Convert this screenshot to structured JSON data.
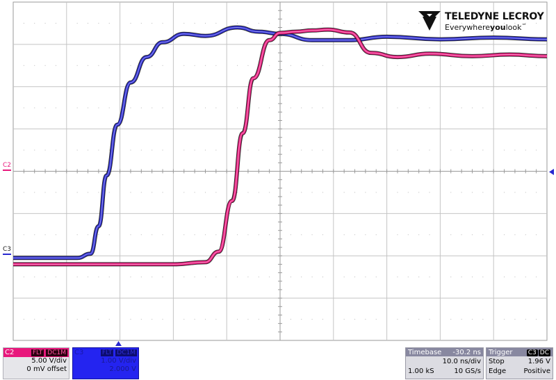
{
  "brand": {
    "name": "TELEDYNE LECROY",
    "tagline_pre": "Everywhere",
    "tagline_bold": "you",
    "tagline_post": "look",
    "tm": "™"
  },
  "markers": {
    "c2": "C2",
    "c3": "C3"
  },
  "channels": {
    "c2": {
      "name": "C2",
      "flt": "FLT",
      "coupling": "DC1M",
      "scale": "5.00 V/div",
      "offset": "0 mV offset",
      "color": "#e8177c",
      "offset_div": 0
    },
    "c3": {
      "name": "C3",
      "flt": "FLT",
      "coupling": "DC1M",
      "scale": "1.00 V/div",
      "offset": "2.000 V",
      "color": "#2828d0",
      "offset_div": -2
    }
  },
  "timebase": {
    "label": "Timebase",
    "delay": "-30.2 ns",
    "scale": "10.0 ns/div",
    "points": "1.00 kS",
    "rate": "10 GS/s"
  },
  "trigger": {
    "label": "Trigger",
    "source": "C3",
    "coupling": "DC",
    "mode": "Stop",
    "level": "1.96 V",
    "type": "Edge",
    "slope": "Positive"
  },
  "chart_data": {
    "type": "line",
    "grid": true,
    "xlim_div": [
      0,
      10
    ],
    "ylim_div": [
      -4,
      4
    ],
    "series": [
      {
        "color": "#2828d0",
        "x": [
          0,
          1.2,
          1.45,
          1.6,
          1.75,
          1.95,
          2.2,
          2.5,
          2.8,
          3.2,
          3.6,
          4.2,
          4.6,
          5.0,
          5.6,
          6.3,
          7.0,
          8.0,
          9.0,
          10.0
        ],
        "y": [
          -2.05,
          -2.05,
          -1.95,
          -1.3,
          -0.1,
          1.1,
          2.1,
          2.7,
          3.05,
          3.25,
          3.2,
          3.4,
          3.3,
          3.25,
          3.1,
          3.1,
          3.18,
          3.12,
          3.16,
          3.12
        ]
      },
      {
        "color": "#e8177c",
        "x": [
          0,
          3.0,
          3.6,
          3.85,
          4.1,
          4.3,
          4.5,
          4.8,
          5.0,
          5.3,
          5.6,
          5.9,
          6.3,
          6.7,
          7.2,
          7.8,
          8.6,
          9.3,
          10.0
        ],
        "y": [
          -2.2,
          -2.2,
          -2.15,
          -1.9,
          -0.7,
          0.9,
          2.2,
          3.1,
          3.27,
          3.3,
          3.33,
          3.35,
          3.28,
          2.8,
          2.7,
          2.78,
          2.72,
          2.76,
          2.72
        ]
      }
    ]
  }
}
